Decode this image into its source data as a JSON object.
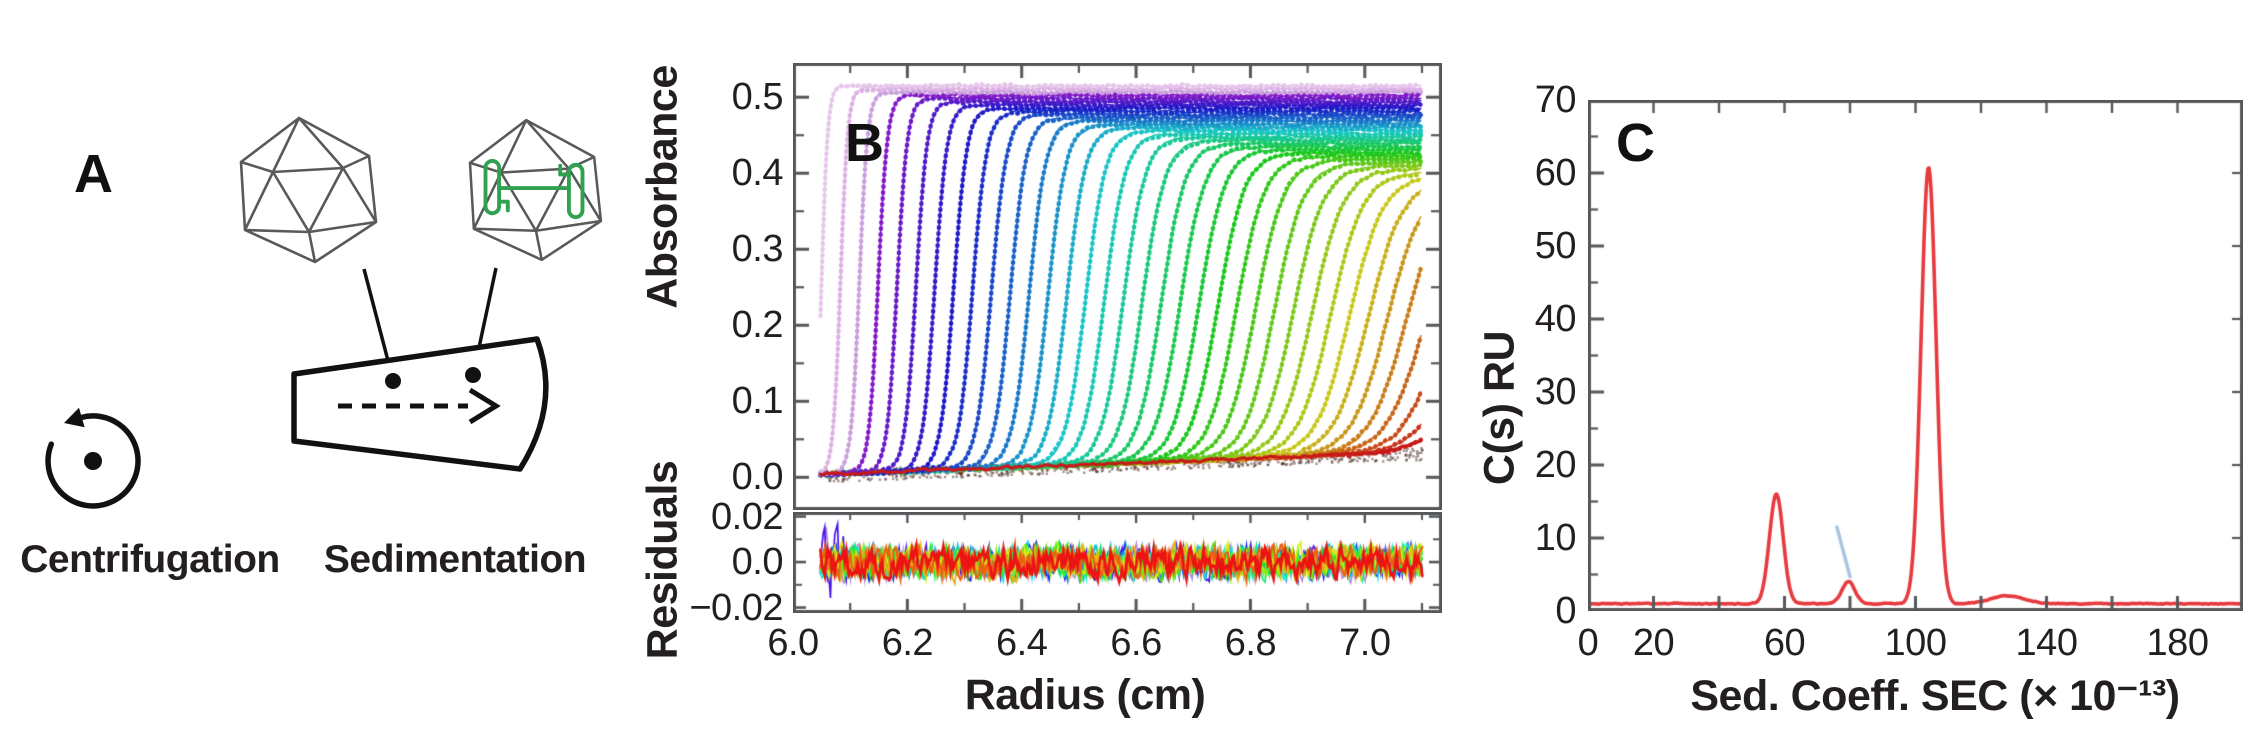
{
  "figure": {
    "description": "Analytical ultracentrifugation sedimentation velocity figure",
    "background": "#ffffff"
  },
  "colors": {
    "text": "#231f20",
    "frame": "#55585b",
    "wireframe": "#58595b",
    "schematic_line": "#111111",
    "genome_green": "#2fa14f",
    "distribution_red": "#e63a3e",
    "annotation_blue": "#a9c5e4"
  },
  "panel_a": {
    "label": "A",
    "captions": {
      "left": "Centrifugation",
      "right": "Sedimentation"
    },
    "icons": [
      "icosahedral-capsid-empty-icon",
      "icosahedral-capsid-genome-icon",
      "rotation-ccw-arrow-icon",
      "sector-centerpiece-cell-icon",
      "sedimentation-direction-dashed-arrow-icon"
    ]
  },
  "panel_b": {
    "label": "B",
    "x_axis": {
      "title": "Radius (cm)",
      "min": 6.0,
      "max": 7.135,
      "major_ticks": [
        6.0,
        6.2,
        6.4,
        6.6,
        6.8,
        7.0
      ],
      "tick_labels": [
        "6.0",
        "6.2",
        "6.4",
        "6.6",
        "6.8",
        "7.0"
      ],
      "minor_ticks": [
        6.1,
        6.3,
        6.5,
        6.7,
        6.9,
        7.1
      ]
    },
    "y_axis_main": {
      "title": "Absorbance",
      "min": -0.043,
      "max": 0.545,
      "major_ticks": [
        0.5,
        0.4,
        0.3,
        0.2,
        0.1,
        0.0
      ],
      "tick_labels": [
        "0.5",
        "0.4",
        "0.3",
        "0.2",
        "0.1",
        "0.0"
      ],
      "minor_ticks": [
        0.45,
        0.35,
        0.25,
        0.15,
        0.05
      ]
    },
    "y_axis_resid": {
      "title": "Residuals",
      "min": -0.0224,
      "max": 0.022,
      "major_ticks": [
        0.02,
        0.0,
        -0.02
      ],
      "tick_labels": [
        "0.02",
        "0.0",
        "−0.02"
      ],
      "minor_ticks": [
        0.01,
        -0.01
      ]
    }
  },
  "panel_c": {
    "label": "C",
    "x_axis": {
      "title": "Sed. Coeff. SEC (× 10⁻¹³)",
      "min": 0,
      "max": 200,
      "labeled_ticks": [
        0,
        20,
        60,
        100,
        140,
        180
      ],
      "tick_labels": [
        "0",
        "20",
        "60",
        "100",
        "140",
        "180"
      ],
      "tick_step": 20
    },
    "y_axis": {
      "title": "C(s) RU",
      "min": 0,
      "max": 70,
      "major_ticks": [
        70,
        60,
        50,
        40,
        30,
        20,
        10,
        0
      ],
      "tick_labels": [
        "70",
        "60",
        "50",
        "40",
        "30",
        "20",
        "10",
        "0"
      ],
      "minor_step": 5
    }
  },
  "chart_data": [
    {
      "id": "b_scans",
      "type": "line",
      "title": "Sedimentation velocity absorbance scans vs radius",
      "x_range": [
        6.048,
        7.101
      ],
      "n_scans": 36,
      "boundary_radius_start": 6.05,
      "boundary_radius_step": 0.033,
      "plateau_start": 0.515,
      "plateau_step": -0.0042,
      "boundary_width_start": 0.0055,
      "boundary_width_step": 0.00085,
      "baseline_left": 0.004,
      "baseline_slope": 0.028,
      "palette": {
        "first_scans": [
          "#e6c6ea",
          "#dcb2e4",
          "#c99fdc"
        ],
        "hue_start": 276,
        "hue_end": 0,
        "saturation": 78,
        "lightness": 44
      },
      "seed": 5
    },
    {
      "id": "b_residuals",
      "type": "line",
      "title": "Fit residuals",
      "x_range": [
        6.048,
        7.101
      ],
      "n_traces": 14,
      "rms_amplitude": 0.005,
      "max_amplitude": 0.02,
      "seed": 11
    },
    {
      "id": "c_distribution",
      "type": "line",
      "title": "c(s) distribution",
      "color": "#e63a3e",
      "baseline": 1.0,
      "x_range": [
        0,
        200
      ],
      "peaks": [
        {
          "center": 57.5,
          "height": 15.0,
          "sigma": 2.1
        },
        {
          "center": 79.5,
          "height": 3.0,
          "sigma": 2.0
        },
        {
          "center": 104.0,
          "height": 59.8,
          "sigma": 2.3
        },
        {
          "center": 128.0,
          "height": 1.1,
          "sigma": 5.0
        }
      ],
      "annotation_line": {
        "x1": 76,
        "y1": 11.5,
        "x2": 80,
        "y2": 4.7,
        "color": "#a9c5e4"
      },
      "seed": 3
    }
  ]
}
